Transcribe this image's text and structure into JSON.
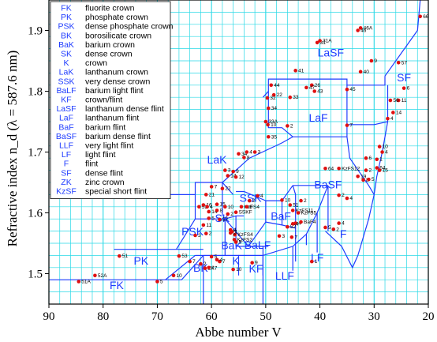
{
  "chart_data": {
    "type": "scatter",
    "xlabel": "Abbe number V",
    "ylabel": "Refractive index n_d (λ = 587.6 nm)",
    "xlim": [
      90,
      20
    ],
    "ylim": [
      1.45,
      1.95
    ],
    "x_ticks": [
      90,
      80,
      70,
      60,
      50,
      40,
      30,
      20
    ],
    "y_ticks": [
      1.5,
      1.6,
      1.7,
      1.8,
      1.9
    ],
    "grid": true,
    "legend_position": "top-left",
    "legend": [
      {
        "abbr": "FK",
        "desc": "fluorite crown"
      },
      {
        "abbr": "PK",
        "desc": "phosphate crown"
      },
      {
        "abbr": "PSK",
        "desc": "dense phosphate crown"
      },
      {
        "abbr": "BK",
        "desc": "borosilicate crown"
      },
      {
        "abbr": "BaK",
        "desc": "barium crown"
      },
      {
        "abbr": "SK",
        "desc": "dense crown"
      },
      {
        "abbr": "K",
        "desc": "crown"
      },
      {
        "abbr": "LaK",
        "desc": "lanthanum crown"
      },
      {
        "abbr": "SSK",
        "desc": "very dense crown"
      },
      {
        "abbr": "BaLF",
        "desc": "barium light flint"
      },
      {
        "abbr": "KF",
        "desc": "crown/flint"
      },
      {
        "abbr": "LaSF",
        "desc": "lanthanum dense flint"
      },
      {
        "abbr": "LaF",
        "desc": "lanthanum flint"
      },
      {
        "abbr": "BaF",
        "desc": "barium flint"
      },
      {
        "abbr": "BaSF",
        "desc": "barium dense flint"
      },
      {
        "abbr": "LLF",
        "desc": "very light flint"
      },
      {
        "abbr": "LF",
        "desc": "light flint"
      },
      {
        "abbr": "F",
        "desc": "flint"
      },
      {
        "abbr": "SF",
        "desc": "dense flint"
      },
      {
        "abbr": "ZK",
        "desc": "zinc crown"
      },
      {
        "abbr": "KzSF",
        "desc": "special short flint"
      }
    ],
    "region_labels": [
      {
        "text": "FK",
        "x": 77.5,
        "y": 1.475
      },
      {
        "text": "PK",
        "x": 73,
        "y": 1.515
      },
      {
        "text": "PSK",
        "x": 63.5,
        "y": 1.563
      },
      {
        "text": "BK",
        "x": 62,
        "y": 1.503
      },
      {
        "text": "BaK",
        "x": 56.3,
        "y": 1.54
      },
      {
        "text": "SK",
        "x": 58,
        "y": 1.585
      },
      {
        "text": "K",
        "x": 55.5,
        "y": 1.515
      },
      {
        "text": "KF",
        "x": 51.8,
        "y": 1.502
      },
      {
        "text": "LLF",
        "x": 46.5,
        "y": 1.49
      },
      {
        "text": "BaLF",
        "x": 51.5,
        "y": 1.541
      },
      {
        "text": "SSK",
        "x": 52.8,
        "y": 1.618
      },
      {
        "text": "BaF",
        "x": 47.2,
        "y": 1.588
      },
      {
        "text": "LF",
        "x": 40.5,
        "y": 1.52
      },
      {
        "text": "F",
        "x": 35.7,
        "y": 1.559
      },
      {
        "text": "BaSF",
        "x": 38.5,
        "y": 1.64
      },
      {
        "text": "LaK",
        "x": 59,
        "y": 1.681
      },
      {
        "text": "LaF",
        "x": 40.3,
        "y": 1.75
      },
      {
        "text": "LaSF",
        "x": 38,
        "y": 1.857
      },
      {
        "text": "SF",
        "x": 24.5,
        "y": 1.816
      }
    ],
    "boundaries": [
      [
        [
          90,
          1.49
        ],
        [
          65.5,
          1.49
        ],
        [
          61.5,
          1.53
        ]
      ],
      [
        [
          61.5,
          1.53
        ],
        [
          61.5,
          1.45
        ]
      ],
      [
        [
          78,
          1.54
        ],
        [
          61.5,
          1.54
        ]
      ],
      [
        [
          68.5,
          1.49
        ],
        [
          63,
          1.53
        ]
      ],
      [
        [
          63,
          1.53
        ],
        [
          61.5,
          1.53
        ]
      ],
      [
        [
          66.5,
          1.54
        ],
        [
          63,
          1.59
        ],
        [
          63,
          1.63
        ],
        [
          69,
          1.63
        ]
      ],
      [
        [
          63,
          1.59
        ],
        [
          57.5,
          1.59
        ],
        [
          53.2,
          1.545
        ],
        [
          49.5,
          1.545
        ]
      ],
      [
        [
          61.5,
          1.53
        ],
        [
          57.5,
          1.53
        ],
        [
          57.5,
          1.59
        ]
      ],
      [
        [
          57.5,
          1.53
        ],
        [
          55,
          1.53
        ],
        [
          55,
          1.497
        ]
      ],
      [
        [
          55,
          1.53
        ],
        [
          50.5,
          1.53
        ],
        [
          50.5,
          1.497
        ]
      ],
      [
        [
          63,
          1.63
        ],
        [
          63,
          1.65
        ],
        [
          58,
          1.65
        ],
        [
          56,
          1.63
        ]
      ],
      [
        [
          55.5,
          1.545
        ],
        [
          50.5,
          1.545
        ],
        [
          50.5,
          1.53
        ]
      ],
      [
        [
          50.5,
          1.53
        ],
        [
          50.5,
          1.45
        ]
      ],
      [
        [
          58,
          1.65
        ],
        [
          58,
          1.595
        ]
      ],
      [
        [
          55.5,
          1.545
        ],
        [
          55.5,
          1.595
        ]
      ],
      [
        [
          57.5,
          1.59
        ],
        [
          55.5,
          1.595
        ],
        [
          54,
          1.595
        ]
      ],
      [
        [
          53.2,
          1.545
        ],
        [
          50,
          1.585
        ],
        [
          50,
          1.62
        ],
        [
          54,
          1.635
        ],
        [
          55.5,
          1.635
        ]
      ],
      [
        [
          50.5,
          1.53
        ],
        [
          45,
          1.545
        ],
        [
          42.5,
          1.565
        ],
        [
          40.5,
          1.6
        ],
        [
          38.5,
          1.645
        ]
      ],
      [
        [
          50,
          1.585
        ],
        [
          47,
          1.58
        ],
        [
          44.5,
          1.575
        ]
      ],
      [
        [
          47,
          1.58
        ],
        [
          47,
          1.62
        ],
        [
          45,
          1.645
        ]
      ],
      [
        [
          50,
          1.62
        ],
        [
          47,
          1.62
        ]
      ],
      [
        [
          44.5,
          1.575
        ],
        [
          44.5,
          1.52
        ]
      ],
      [
        [
          44.5,
          1.575
        ],
        [
          44.5,
          1.63
        ],
        [
          45,
          1.645
        ]
      ],
      [
        [
          45,
          1.545
        ],
        [
          45,
          1.505
        ]
      ],
      [
        [
          40.5,
          1.6
        ],
        [
          40.5,
          1.56
        ],
        [
          40.5,
          1.535
        ]
      ],
      [
        [
          42.5,
          1.565
        ],
        [
          42.5,
          1.547
        ]
      ],
      [
        [
          38.5,
          1.645
        ],
        [
          38.5,
          1.57
        ]
      ],
      [
        [
          45,
          1.645
        ],
        [
          38.5,
          1.645
        ]
      ],
      [
        [
          58,
          1.65
        ],
        [
          53,
          1.69
        ],
        [
          47,
          1.715
        ],
        [
          45,
          1.725
        ],
        [
          35,
          1.725
        ],
        [
          35,
          1.745
        ]
      ],
      [
        [
          35,
          1.725
        ],
        [
          34.5,
          1.69
        ],
        [
          31,
          1.645
        ],
        [
          30,
          1.63
        ]
      ],
      [
        [
          50.5,
          1.79
        ],
        [
          49.5,
          1.8
        ],
        [
          49.5,
          1.82
        ],
        [
          35,
          1.82
        ],
        [
          35,
          1.81
        ],
        [
          28,
          1.81
        ],
        [
          28,
          1.825
        ]
      ],
      [
        [
          49.5,
          1.8
        ],
        [
          49.5,
          1.74
        ],
        [
          47,
          1.74
        ],
        [
          45,
          1.725
        ]
      ],
      [
        [
          35,
          1.81
        ],
        [
          35,
          1.745
        ],
        [
          30,
          1.745
        ],
        [
          27.5,
          1.75
        ],
        [
          27.5,
          1.81
        ]
      ],
      [
        [
          28,
          1.825
        ],
        [
          22,
          1.9
        ],
        [
          21.5,
          1.95
        ]
      ],
      [
        [
          27.5,
          1.75
        ],
        [
          28.5,
          1.7
        ],
        [
          29.5,
          1.66
        ],
        [
          30,
          1.63
        ]
      ],
      [
        [
          39,
          1.57
        ],
        [
          36,
          1.545
        ],
        [
          34,
          1.51
        ],
        [
          33,
          1.53
        ],
        [
          31,
          1.59
        ],
        [
          30,
          1.63
        ]
      ]
    ],
    "points": [
      {
        "x": 84.5,
        "y": 1.487,
        "label": "51A"
      },
      {
        "x": 81.5,
        "y": 1.497,
        "label": "52A"
      },
      {
        "x": 77,
        "y": 1.529,
        "label": "51"
      },
      {
        "x": 70,
        "y": 1.487,
        "label": "5"
      },
      {
        "x": 67,
        "y": 1.497,
        "label": "10"
      },
      {
        "x": 66,
        "y": 1.529,
        "label": "53"
      },
      {
        "x": 64,
        "y": 1.52,
        "label": "7"
      },
      {
        "x": 62,
        "y": 1.516,
        "label": "2"
      },
      {
        "x": 61.2,
        "y": 1.509,
        "label": "ZK7"
      },
      {
        "x": 60.5,
        "y": 1.51,
        "label": "1"
      },
      {
        "x": 60,
        "y": 1.528,
        "label": "5"
      },
      {
        "x": 58.5,
        "y": 1.52,
        "label": "7"
      },
      {
        "x": 59,
        "y": 1.523,
        "label": "4"
      },
      {
        "x": 56,
        "y": 1.507,
        "label": "10"
      },
      {
        "x": 52.5,
        "y": 1.518,
        "label": "9"
      },
      {
        "x": 63,
        "y": 1.563,
        "label": "3"
      },
      {
        "x": 61.5,
        "y": 1.58,
        "label": "11"
      },
      {
        "x": 61,
        "y": 1.566,
        "label": "2"
      },
      {
        "x": 62.3,
        "y": 1.61,
        "label": "53"
      },
      {
        "x": 61.5,
        "y": 1.613,
        "label": "16"
      },
      {
        "x": 60.8,
        "y": 1.61,
        "label": "4"
      },
      {
        "x": 60.5,
        "y": 1.602,
        "label": "14"
      },
      {
        "x": 60.5,
        "y": 1.591,
        "label": "5"
      },
      {
        "x": 58.5,
        "y": 1.589,
        "label": "57"
      },
      {
        "x": 59,
        "y": 1.604,
        "label": "8"
      },
      {
        "x": 59,
        "y": 1.614,
        "label": "15"
      },
      {
        "x": 57.5,
        "y": 1.61,
        "label": "10"
      },
      {
        "x": 57,
        "y": 1.598,
        "label": "2"
      },
      {
        "x": 56.5,
        "y": 1.572,
        "label": "4"
      },
      {
        "x": 56.2,
        "y": 1.569,
        "label": "1"
      },
      {
        "x": 55.7,
        "y": 1.564,
        "label": "KzFS4"
      },
      {
        "x": 55.8,
        "y": 1.556,
        "label": "KzFS2"
      },
      {
        "x": 56.5,
        "y": 1.567,
        "label": "2"
      },
      {
        "x": 55.5,
        "y": 1.552,
        "label": "5"
      },
      {
        "x": 54.5,
        "y": 1.61,
        "label": "KzFS4"
      },
      {
        "x": 55.5,
        "y": 1.601,
        "label": "SSKF"
      },
      {
        "x": 53.5,
        "y": 1.61,
        "label": "8"
      },
      {
        "x": 53,
        "y": 1.62,
        "label": "2"
      },
      {
        "x": 51.5,
        "y": 1.628,
        "label": "4"
      },
      {
        "x": 61,
        "y": 1.63,
        "label": "21"
      },
      {
        "x": 60,
        "y": 1.643,
        "label": "7"
      },
      {
        "x": 58,
        "y": 1.64,
        "label": "22"
      },
      {
        "x": 57,
        "y": 1.661,
        "label": "14"
      },
      {
        "x": 56,
        "y": 1.668,
        "label": "9"
      },
      {
        "x": 55.5,
        "y": 1.659,
        "label": "12"
      },
      {
        "x": 57.5,
        "y": 1.67,
        "label": "3"
      },
      {
        "x": 55,
        "y": 1.697,
        "label": "34"
      },
      {
        "x": 54,
        "y": 1.691,
        "label": "8"
      },
      {
        "x": 53.5,
        "y": 1.7,
        "label": "4"
      },
      {
        "x": 52,
        "y": 1.7,
        "label": "3"
      },
      {
        "x": 49.5,
        "y": 1.725,
        "label": "35"
      },
      {
        "x": 50,
        "y": 1.75,
        "label": "33A"
      },
      {
        "x": 49.6,
        "y": 1.745,
        "label": "10"
      },
      {
        "x": 46,
        "y": 1.743,
        "label": "2"
      },
      {
        "x": 47,
        "y": 1.621,
        "label": "10"
      },
      {
        "x": 45,
        "y": 1.604,
        "label": "KzFS11"
      },
      {
        "x": 45.5,
        "y": 1.613,
        "label": "51"
      },
      {
        "x": 44.5,
        "y": 1.583,
        "label": "4"
      },
      {
        "x": 43.5,
        "y": 1.585,
        "label": "BaF4"
      },
      {
        "x": 46,
        "y": 1.577,
        "label": "52"
      },
      {
        "x": 47.5,
        "y": 1.562,
        "label": "3"
      },
      {
        "x": 45.2,
        "y": 1.56,
        "label": "7"
      },
      {
        "x": 44,
        "y": 1.6,
        "label": "KzFS5"
      },
      {
        "x": 45,
        "y": 1.582,
        "label": "4"
      },
      {
        "x": 43.5,
        "y": 1.62,
        "label": "2"
      },
      {
        "x": 41.5,
        "y": 1.52,
        "label": "1"
      },
      {
        "x": 39,
        "y": 1.576,
        "label": "5"
      },
      {
        "x": 37.5,
        "y": 1.573,
        "label": "2"
      },
      {
        "x": 36.5,
        "y": 1.583,
        "label": "4"
      },
      {
        "x": 36.5,
        "y": 1.629,
        "label": "2"
      },
      {
        "x": 35,
        "y": 1.624,
        "label": "4"
      },
      {
        "x": 39,
        "y": 1.673,
        "label": "64"
      },
      {
        "x": 36.5,
        "y": 1.673,
        "label": "KzFS12"
      },
      {
        "x": 35,
        "y": 1.744,
        "label": "7"
      },
      {
        "x": 33,
        "y": 1.66,
        "label": "19"
      },
      {
        "x": 32,
        "y": 1.654,
        "label": "8"
      },
      {
        "x": 31.5,
        "y": 1.69,
        "label": "6"
      },
      {
        "x": 31,
        "y": 1.655,
        "label": "5"
      },
      {
        "x": 31.5,
        "y": 1.67,
        "label": "2"
      },
      {
        "x": 29.5,
        "y": 1.688,
        "label": "1"
      },
      {
        "x": 29.5,
        "y": 1.674,
        "label": "64"
      },
      {
        "x": 29,
        "y": 1.67,
        "label": "15"
      },
      {
        "x": 29,
        "y": 1.709,
        "label": "10"
      },
      {
        "x": 28.5,
        "y": 1.7,
        "label": "4"
      },
      {
        "x": 27.5,
        "y": 1.755,
        "label": "4"
      },
      {
        "x": 26.5,
        "y": 1.765,
        "label": "14"
      },
      {
        "x": 25.5,
        "y": 1.785,
        "label": "11"
      },
      {
        "x": 27,
        "y": 1.785,
        "label": "56"
      },
      {
        "x": 24.5,
        "y": 1.805,
        "label": "6"
      },
      {
        "x": 25.5,
        "y": 1.847,
        "label": "57"
      },
      {
        "x": 21.5,
        "y": 1.923,
        "label": "66"
      },
      {
        "x": 33,
        "y": 1.9,
        "label": "46"
      },
      {
        "x": 32.5,
        "y": 1.904,
        "label": "46A"
      },
      {
        "x": 30.5,
        "y": 1.85,
        "label": "9"
      },
      {
        "x": 32.5,
        "y": 1.832,
        "label": "40"
      },
      {
        "x": 40.5,
        "y": 1.88,
        "label": "31"
      },
      {
        "x": 40,
        "y": 1.883,
        "label": "31A"
      },
      {
        "x": 44.5,
        "y": 1.834,
        "label": "41"
      },
      {
        "x": 41.5,
        "y": 1.81,
        "label": "26"
      },
      {
        "x": 45.5,
        "y": 1.79,
        "label": "33"
      },
      {
        "x": 41,
        "y": 1.8,
        "label": "43"
      },
      {
        "x": 42.5,
        "y": 1.806,
        "label": "47"
      },
      {
        "x": 35,
        "y": 1.803,
        "label": "45"
      },
      {
        "x": 49,
        "y": 1.81,
        "label": "44"
      },
      {
        "x": 48.5,
        "y": 1.794,
        "label": "22"
      },
      {
        "x": 49.5,
        "y": 1.772,
        "label": "34"
      },
      {
        "x": 49.7,
        "y": 1.789,
        "label": "32"
      }
    ]
  }
}
